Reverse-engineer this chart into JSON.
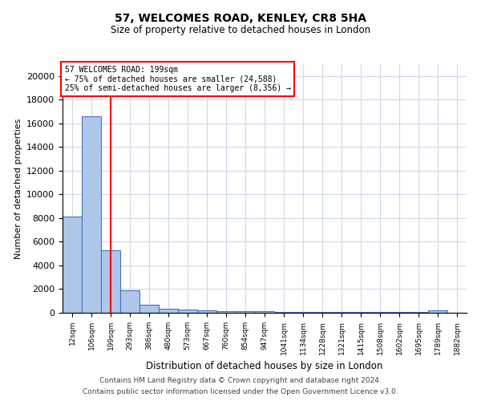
{
  "title": "57, WELCOMES ROAD, KENLEY, CR8 5HA",
  "subtitle": "Size of property relative to detached houses in London",
  "xlabel": "Distribution of detached houses by size in London",
  "ylabel": "Number of detached properties",
  "footer_line1": "Contains HM Land Registry data © Crown copyright and database right 2024.",
  "footer_line2": "Contains public sector information licensed under the Open Government Licence v3.0.",
  "bin_labels": [
    "12sqm",
    "106sqm",
    "199sqm",
    "293sqm",
    "386sqm",
    "480sqm",
    "573sqm",
    "667sqm",
    "760sqm",
    "854sqm",
    "947sqm",
    "1041sqm",
    "1134sqm",
    "1228sqm",
    "1321sqm",
    "1415sqm",
    "1508sqm",
    "1602sqm",
    "1695sqm",
    "1789sqm",
    "1882sqm"
  ],
  "bar_values": [
    8100,
    16600,
    5300,
    1900,
    650,
    330,
    270,
    200,
    160,
    130,
    110,
    95,
    85,
    80,
    75,
    70,
    65,
    60,
    55,
    200,
    0
  ],
  "bar_color": "#aec6e8",
  "bar_edge_color": "#4472c4",
  "marker_index": 2,
  "annotation_text_line1": "57 WELCOMES ROAD: 199sqm",
  "annotation_text_line2": "← 75% of detached houses are smaller (24,588)",
  "annotation_text_line3": "25% of semi-detached houses are larger (8,356) →",
  "marker_color": "red",
  "ylim": [
    0,
    21000
  ],
  "yticks": [
    0,
    2000,
    4000,
    6000,
    8000,
    10000,
    12000,
    14000,
    16000,
    18000,
    20000
  ],
  "background_color": "#ffffff",
  "grid_color": "#d0d8e8"
}
